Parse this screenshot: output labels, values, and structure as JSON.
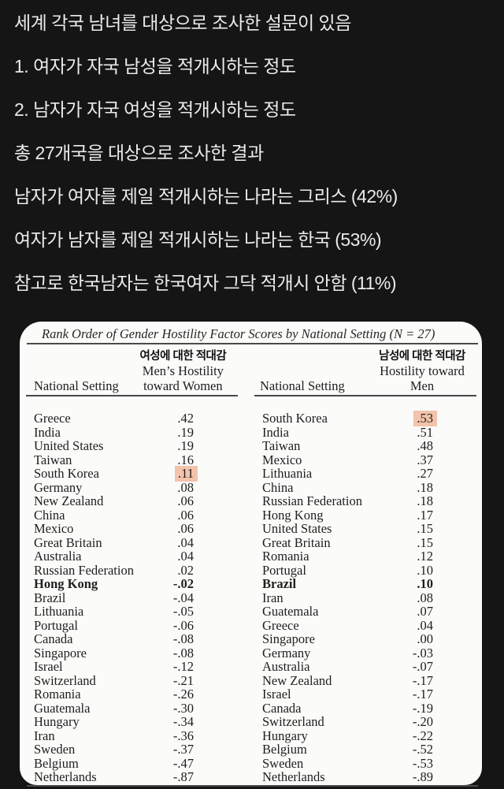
{
  "intro": {
    "lines": [
      "세계 각국 남녀를 대상으로 조사한 설문이 있음",
      "1. 여자가 자국 남성을 적개시하는 정도",
      "2. 남자가 자국 여성을 적개시하는 정도",
      "총 27개국을 대상으로 조사한 결과",
      "남자가 여자를 제일 적개시하는 나라는 그리스 (42%)",
      "여자가 남자를 제일 적개시하는 나라는 한국 (53%)",
      "참고로 한국남자는 한국여자 그닥 적개시 안함 (11%)"
    ]
  },
  "table": {
    "title": "Rank Order of Gender Hostility Factor Scores by National Setting (N = 27)",
    "highlight_color": "#f3c3ab",
    "left": {
      "korean_header": "여성에 대한 적대감",
      "value_header_line1": "Men’s Hostility",
      "value_header_line2": "toward Women",
      "name_header": "National Setting",
      "rows": [
        {
          "name": "Greece",
          "value": ".42"
        },
        {
          "name": "India",
          "value": ".19"
        },
        {
          "name": "United States",
          "value": ".19"
        },
        {
          "name": "Taiwan",
          "value": ".16"
        },
        {
          "name": "South Korea",
          "value": ".11",
          "highlight": true
        },
        {
          "name": "Germany",
          "value": ".08"
        },
        {
          "name": "New Zealand",
          "value": ".06"
        },
        {
          "name": "China",
          "value": ".06"
        },
        {
          "name": "Mexico",
          "value": ".06"
        },
        {
          "name": "Great Britain",
          "value": ".04"
        },
        {
          "name": "Australia",
          "value": ".04"
        },
        {
          "name": "Russian Federation",
          "value": ".02"
        },
        {
          "name": "Hong Kong",
          "value": "-.02",
          "bold": true
        },
        {
          "name": "Brazil",
          "value": "-.04"
        },
        {
          "name": "Lithuania",
          "value": "-.05"
        },
        {
          "name": "Portugal",
          "value": "-.06"
        },
        {
          "name": "Canada",
          "value": "-.08"
        },
        {
          "name": "Singapore",
          "value": "-.08"
        },
        {
          "name": "Israel",
          "value": "-.12"
        },
        {
          "name": "Switzerland",
          "value": "-.21"
        },
        {
          "name": "Romania",
          "value": "-.26"
        },
        {
          "name": "Guatemala",
          "value": "-.30"
        },
        {
          "name": "Hungary",
          "value": "-.34"
        },
        {
          "name": "Iran",
          "value": "-.36"
        },
        {
          "name": "Sweden",
          "value": "-.37"
        },
        {
          "name": "Belgium",
          "value": "-.47"
        },
        {
          "name": "Netherlands",
          "value": "-.87"
        }
      ]
    },
    "right": {
      "korean_header": "남성에 대한 적대감",
      "value_header_line1": "Hostility toward",
      "value_header_line2": "Men",
      "name_header": "National Setting",
      "rows": [
        {
          "name": "South Korea",
          "value": ".53",
          "highlight": true
        },
        {
          "name": "India",
          "value": ".51"
        },
        {
          "name": "Taiwan",
          "value": ".48"
        },
        {
          "name": "Mexico",
          "value": ".37"
        },
        {
          "name": "Lithuania",
          "value": ".27"
        },
        {
          "name": "China",
          "value": ".18"
        },
        {
          "name": "Russian Federation",
          "value": ".18"
        },
        {
          "name": "Hong Kong",
          "value": ".17"
        },
        {
          "name": "United States",
          "value": ".15"
        },
        {
          "name": "Great Britain",
          "value": ".15"
        },
        {
          "name": "Romania",
          "value": ".12"
        },
        {
          "name": "Portugal",
          "value": ".10"
        },
        {
          "name": "Brazil",
          "value": ".10",
          "bold": true
        },
        {
          "name": "Iran",
          "value": ".08"
        },
        {
          "name": "Guatemala",
          "value": ".07"
        },
        {
          "name": "Greece",
          "value": ".04"
        },
        {
          "name": "Singapore",
          "value": ".00"
        },
        {
          "name": "Germany",
          "value": "-.03"
        },
        {
          "name": "Australia",
          "value": "-.07"
        },
        {
          "name": "New Zealand",
          "value": "-.17"
        },
        {
          "name": "Israel",
          "value": "-.17"
        },
        {
          "name": "Canada",
          "value": "-.19"
        },
        {
          "name": "Switzerland",
          "value": "-.20"
        },
        {
          "name": "Hungary",
          "value": "-.22"
        },
        {
          "name": "Belgium",
          "value": "-.52"
        },
        {
          "name": "Sweden",
          "value": "-.53"
        },
        {
          "name": "Netherlands",
          "value": "-.89"
        }
      ]
    }
  }
}
